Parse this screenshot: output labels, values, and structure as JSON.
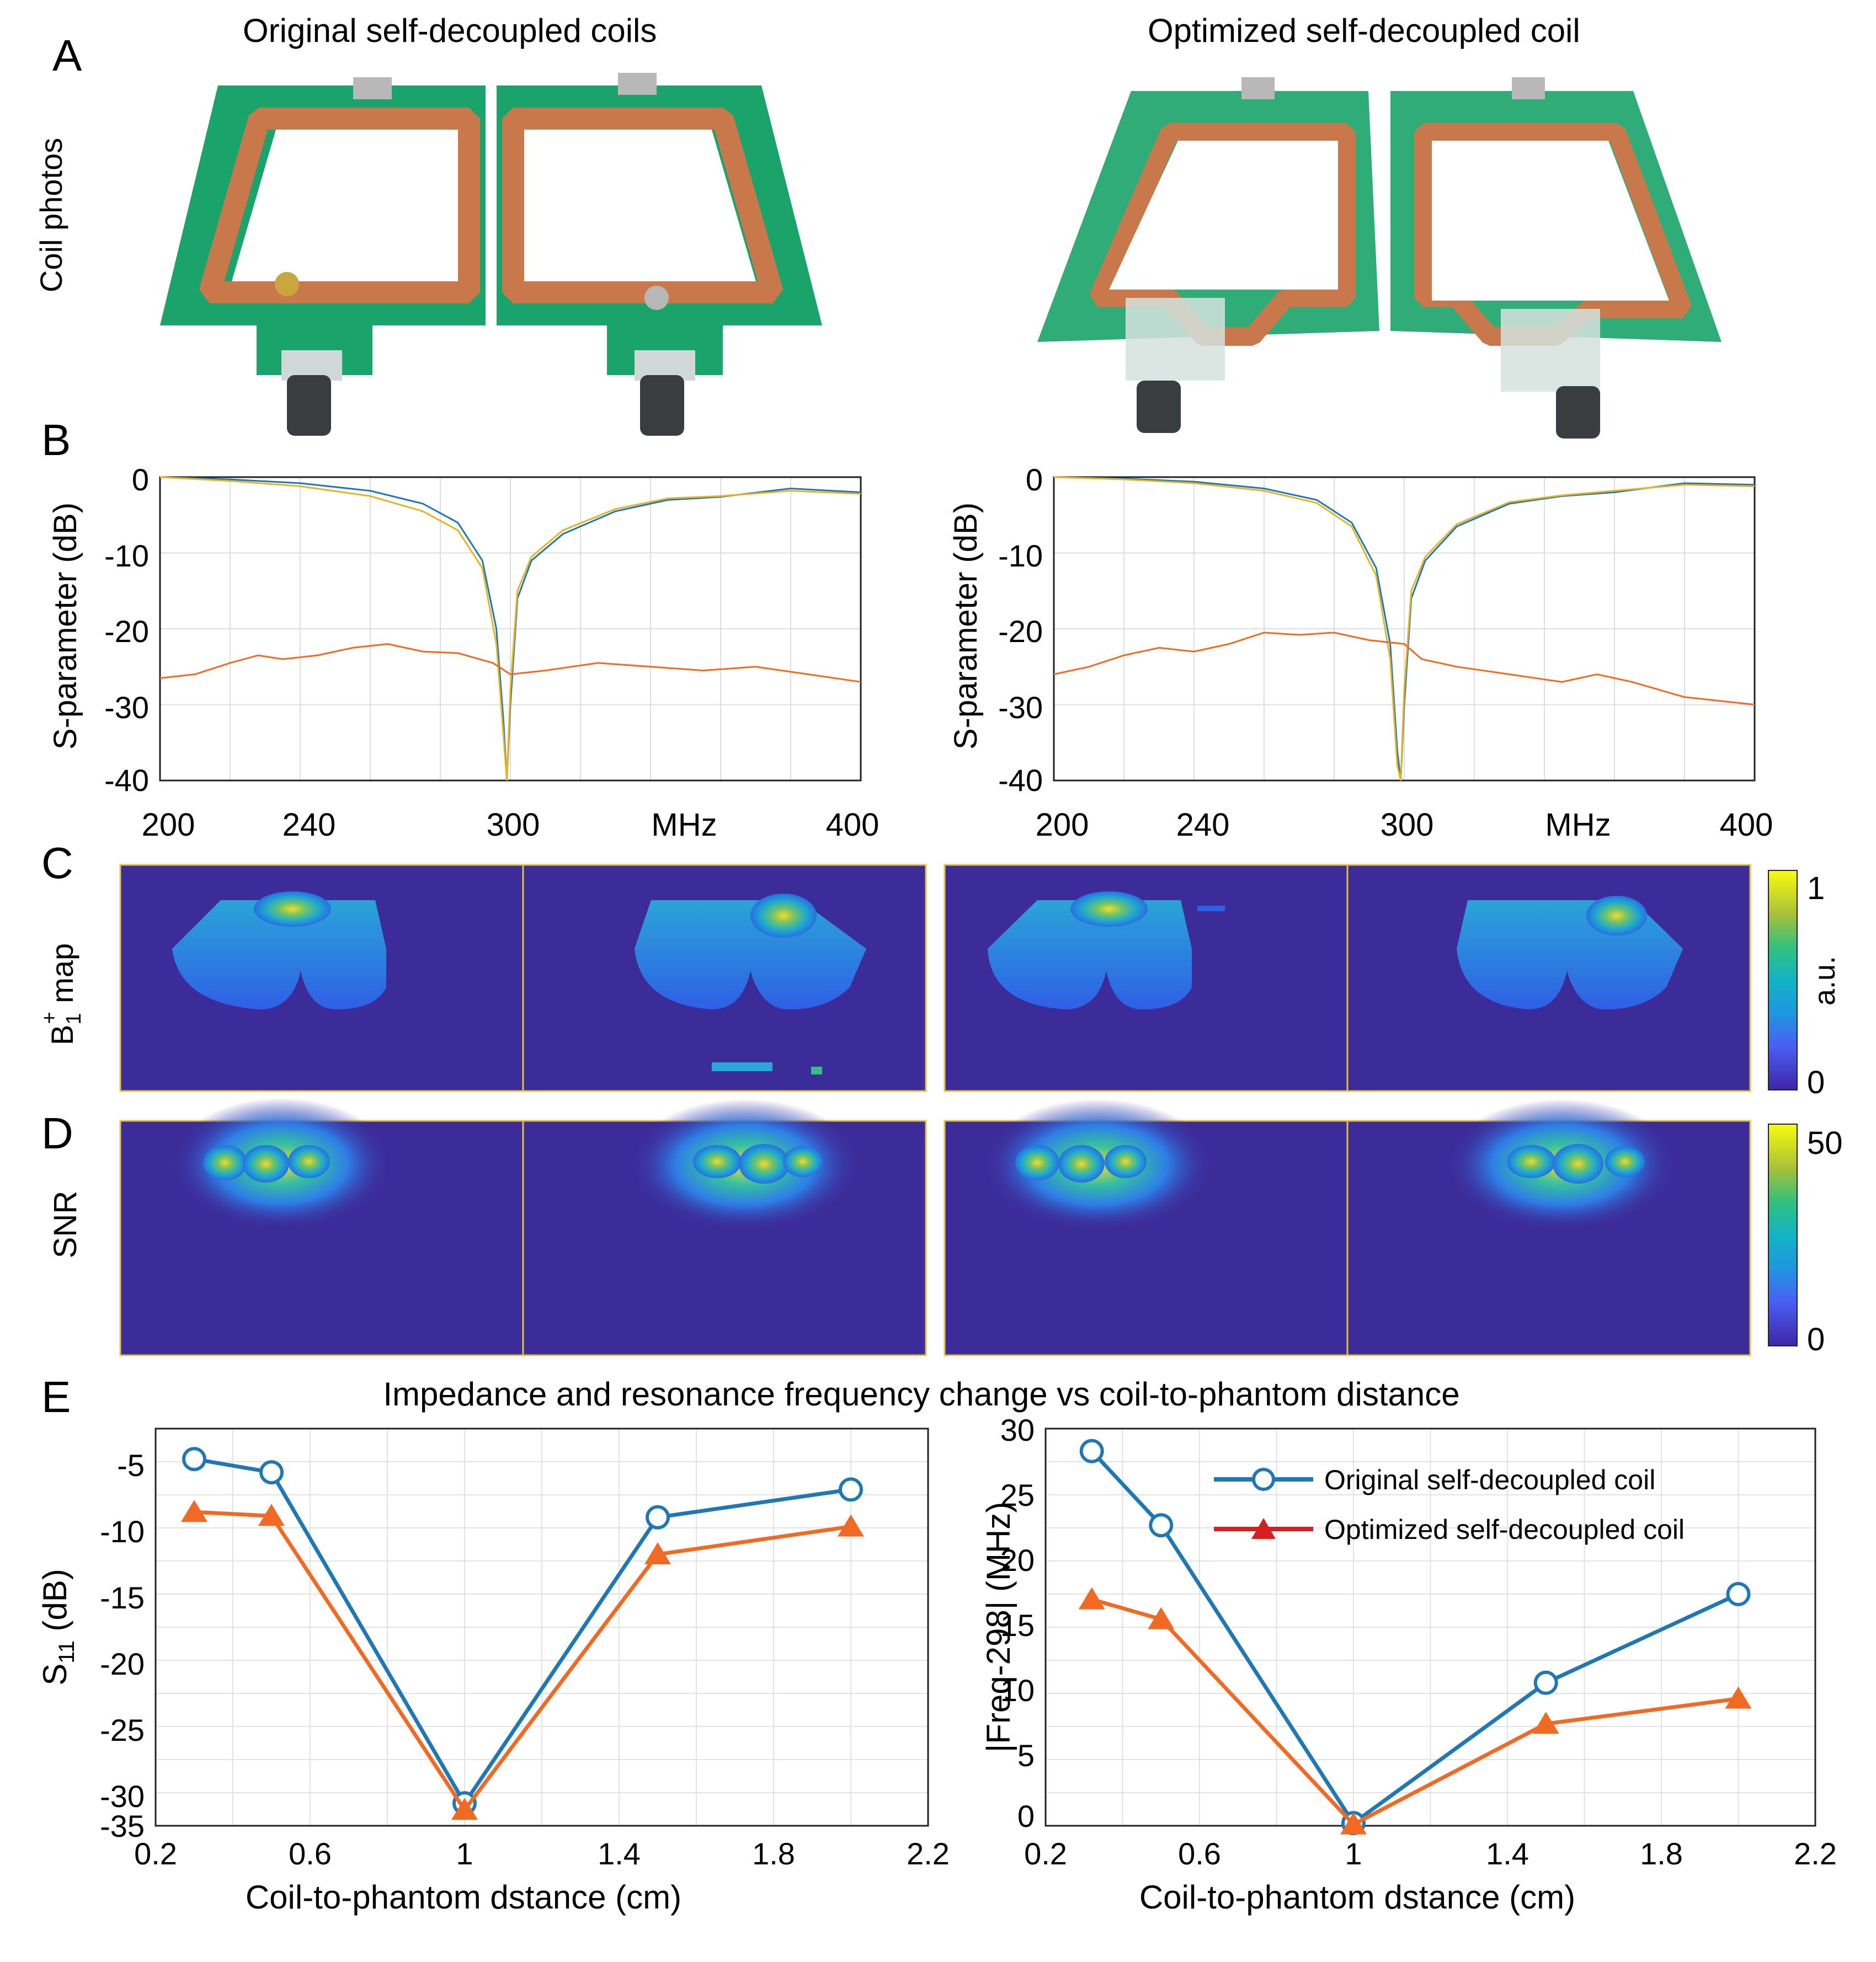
{
  "panel_letters": {
    "a": "A",
    "b": "B",
    "c": "C",
    "d": "D",
    "e": "E"
  },
  "panel_a": {
    "row_label": "Coil photos",
    "left_title": "Original self-decoupled coils",
    "right_title": "Optimized self-decoupled coil"
  },
  "panel_b": {
    "ylabel": "S-parameter (dB)",
    "left_yticks": [
      "0",
      "-10",
      "-20",
      "-30",
      "-40"
    ],
    "right_yticks": [
      "0",
      "-10",
      "-20",
      "-30",
      "-40"
    ],
    "xticks": [
      "200",
      "240",
      "300",
      "MHz",
      "400"
    ]
  },
  "panel_c": {
    "row_label_main": "B",
    "row_label_sub": "1",
    "row_label_sup": "+",
    "row_label_rest": " map",
    "cbar_ticks": [
      "1",
      "0"
    ],
    "cbar_unit": "a.u."
  },
  "panel_d": {
    "row_label": "SNR",
    "cbar_ticks": [
      "50",
      "0"
    ]
  },
  "panel_e": {
    "title": "Impedance and resonance frequency change vs coil-to-phantom distance",
    "left_ylabel_main": "S",
    "left_ylabel_sub": "11",
    "left_ylabel_rest": " (dB)",
    "right_ylabel": "|Freq-298| (MHz)",
    "left_yticks": [
      "-5",
      "-10",
      "-15",
      "-20",
      "-25",
      "-30",
      "-35"
    ],
    "right_yticks": [
      "30",
      "25",
      "20",
      "15",
      "10",
      "5",
      "0"
    ],
    "xticks": [
      "0.2",
      "0.6",
      "1",
      "1.4",
      "1.8",
      "2.2"
    ],
    "xlabel": "Coil-to-phantom dstance (cm)",
    "legend": [
      "Original self-decoupled coil",
      "Optimized self-decoupled coil"
    ]
  },
  "colors": {
    "blue": "#1f77b4",
    "orange": "#f06a23",
    "yellow": "#e6c13a",
    "pcb": "#1aa36a",
    "copper": "#c8784a",
    "map_bg": "#3c2c9a"
  },
  "chart_data": [
    {
      "type": "line",
      "panel": "B-left",
      "xlim": [
        200,
        400
      ],
      "ylim": [
        -40,
        0
      ],
      "series": [
        {
          "x": [
            200,
            220,
            240,
            260,
            275,
            285,
            292,
            296,
            298,
            299,
            300,
            302,
            306,
            315,
            330,
            345,
            360,
            380,
            400
          ],
          "values": [
            0,
            -0.3,
            -0.8,
            -1.8,
            -3.5,
            -6,
            -11,
            -20,
            -32,
            -40,
            -30,
            -16,
            -11,
            -7.5,
            -4.5,
            -3,
            -2.6,
            -1.5,
            -2
          ]
        },
        {
          "x": [
            200,
            220,
            240,
            260,
            275,
            285,
            292,
            296,
            298,
            299,
            300,
            302,
            306,
            315,
            330,
            345,
            360,
            380,
            400
          ],
          "values": [
            0,
            -0.5,
            -1.2,
            -2.5,
            -4.5,
            -7,
            -12,
            -22,
            -34,
            -40,
            -28,
            -15,
            -10.5,
            -7,
            -4.2,
            -2.8,
            -2.5,
            -1.8,
            -2.2
          ]
        },
        {
          "x": [
            200,
            210,
            220,
            228,
            235,
            245,
            255,
            265,
            275,
            285,
            295,
            300,
            310,
            325,
            340,
            355,
            370,
            385,
            400
          ],
          "values": [
            -26.5,
            -26,
            -24.5,
            -23.5,
            -24,
            -23.5,
            -22.5,
            -22,
            -23,
            -23.2,
            -24.5,
            -26,
            -25.5,
            -24.5,
            -25,
            -25.5,
            -25,
            -26,
            -27
          ]
        }
      ]
    },
    {
      "type": "line",
      "panel": "B-right",
      "xlim": [
        200,
        400
      ],
      "ylim": [
        -40,
        0
      ],
      "series": [
        {
          "x": [
            200,
            220,
            240,
            260,
            275,
            285,
            292,
            296,
            298,
            299,
            300,
            302,
            306,
            315,
            330,
            345,
            360,
            380,
            400
          ],
          "values": [
            0,
            -0.2,
            -0.6,
            -1.5,
            -3,
            -6,
            -12,
            -22,
            -36,
            -40,
            -30,
            -16,
            -11,
            -6.5,
            -3.5,
            -2.5,
            -2,
            -0.8,
            -1
          ]
        },
        {
          "x": [
            200,
            220,
            240,
            260,
            275,
            285,
            292,
            296,
            298,
            299,
            300,
            302,
            306,
            315,
            330,
            345,
            360,
            380,
            400
          ],
          "values": [
            0,
            -0.3,
            -0.8,
            -1.8,
            -3.4,
            -6.5,
            -13,
            -24,
            -38,
            -40,
            -28,
            -15,
            -10.5,
            -6.2,
            -3.3,
            -2.4,
            -1.8,
            -1,
            -1.2
          ]
        },
        {
          "x": [
            200,
            210,
            220,
            230,
            240,
            250,
            260,
            270,
            280,
            290,
            300,
            305,
            315,
            330,
            345,
            355,
            365,
            380,
            400
          ],
          "values": [
            -26,
            -25,
            -23.5,
            -22.5,
            -23,
            -22,
            -20.5,
            -20.8,
            -20.5,
            -21.5,
            -22,
            -24,
            -25,
            -26,
            -27,
            -26,
            -27,
            -29,
            -30
          ]
        }
      ]
    },
    {
      "type": "line",
      "panel": "E-left",
      "xlabel": "Coil-to-phantom dstance (cm)",
      "ylabel": "S11 (dB)",
      "xlim": [
        0.2,
        2.2
      ],
      "ylim": [
        -35,
        -5
      ],
      "x": [
        0.3,
        0.5,
        1,
        1.5,
        2
      ],
      "series": [
        {
          "name": "Original self-decoupled coil",
          "values": [
            -7.3,
            -8.3,
            -33.3,
            -11.7,
            -9.6
          ]
        },
        {
          "name": "Optimized self-decoupled coil",
          "values": [
            -11.3,
            -11.6,
            -33.8,
            -14.5,
            -12.4
          ]
        }
      ]
    },
    {
      "type": "line",
      "panel": "E-right",
      "xlabel": "Coil-to-phantom dstance (cm)",
      "ylabel": "|Freq-298| (MHz)",
      "xlim": [
        0.2,
        2.2
      ],
      "ylim": [
        0,
        30
      ],
      "legend_position": "top-right",
      "x": [
        0.32,
        0.5,
        1,
        1.5,
        2
      ],
      "series": [
        {
          "name": "Original self-decoupled coil",
          "values": [
            28.3,
            22.7,
            0.2,
            10.8,
            17.5
          ]
        },
        {
          "name": "Optimized self-decoupled coil",
          "values": [
            17.1,
            15.6,
            0.1,
            7.7,
            9.6
          ]
        }
      ]
    }
  ]
}
